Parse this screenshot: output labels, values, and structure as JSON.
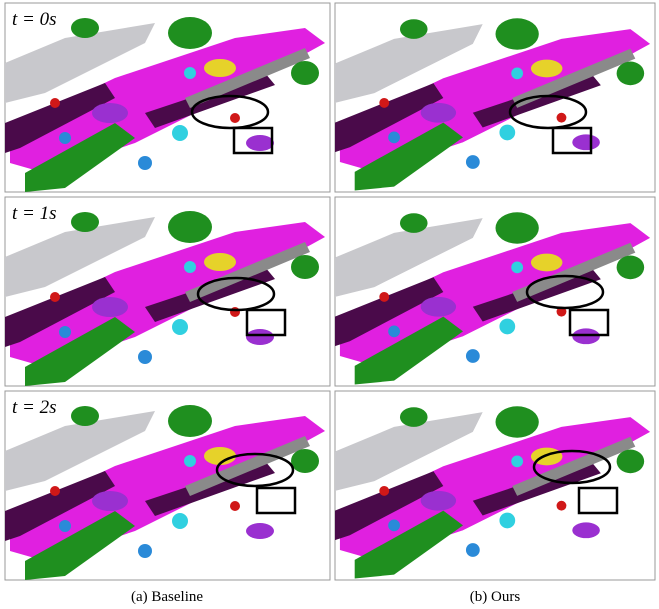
{
  "rows": [
    {
      "label": "t = 0s"
    },
    {
      "label": "t = 1s"
    },
    {
      "label": "t = 2s"
    }
  ],
  "columns": [
    {
      "caption": "(a) Baseline"
    },
    {
      "caption": "(b) Ours"
    }
  ]
}
